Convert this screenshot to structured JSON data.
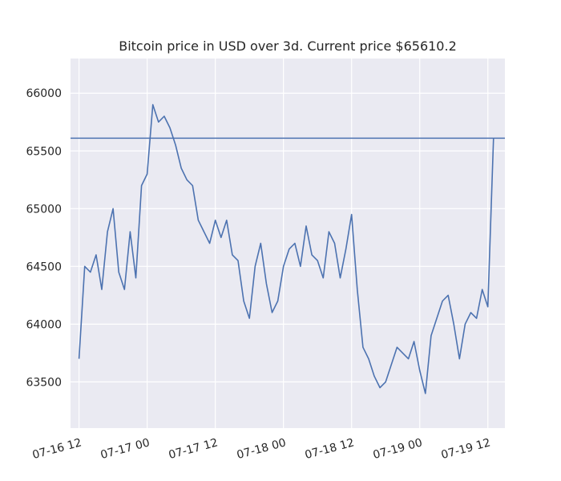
{
  "chart_data": {
    "type": "line",
    "title": "Bitcoin price in USD over 3d. Current price $65610.2",
    "xlabel": "",
    "ylabel": "",
    "x_ticks": [
      "07-16 12",
      "07-17 00",
      "07-17 12",
      "07-18 00",
      "07-18 12",
      "07-19 00",
      "07-19 12"
    ],
    "x_tick_values": [
      "2024-07-16 12:00",
      "2024-07-17 00:00",
      "2024-07-17 12:00",
      "2024-07-18 00:00",
      "2024-07-18 12:00",
      "2024-07-19 00:00",
      "2024-07-19 12:00"
    ],
    "y_ticks": [
      63500,
      64000,
      64500,
      65000,
      65500,
      66000
    ],
    "xlim": [
      "2024-07-16 10:30",
      "2024-07-19 15:00"
    ],
    "ylim": [
      63100,
      66300
    ],
    "grid": true,
    "reference_line": {
      "y": 65610.2
    },
    "colors": {
      "line": "#4c72b0",
      "background": "#eaeaf2",
      "grid": "#ffffff",
      "text": "#262626"
    },
    "series": [
      {
        "x": [
          "2024-07-16 12:00",
          "2024-07-16 13:00",
          "2024-07-16 14:00",
          "2024-07-16 15:00",
          "2024-07-16 16:00",
          "2024-07-16 17:00",
          "2024-07-16 18:00",
          "2024-07-16 19:00",
          "2024-07-16 20:00",
          "2024-07-16 21:00",
          "2024-07-16 22:00",
          "2024-07-16 23:00",
          "2024-07-17 00:00",
          "2024-07-17 01:00",
          "2024-07-17 02:00",
          "2024-07-17 03:00",
          "2024-07-17 04:00",
          "2024-07-17 05:00",
          "2024-07-17 06:00",
          "2024-07-17 07:00",
          "2024-07-17 08:00",
          "2024-07-17 09:00",
          "2024-07-17 10:00",
          "2024-07-17 11:00",
          "2024-07-17 12:00",
          "2024-07-17 13:00",
          "2024-07-17 14:00",
          "2024-07-17 15:00",
          "2024-07-17 16:00",
          "2024-07-17 17:00",
          "2024-07-17 18:00",
          "2024-07-17 19:00",
          "2024-07-17 20:00",
          "2024-07-17 21:00",
          "2024-07-17 22:00",
          "2024-07-17 23:00",
          "2024-07-18 00:00",
          "2024-07-18 01:00",
          "2024-07-18 02:00",
          "2024-07-18 03:00",
          "2024-07-18 04:00",
          "2024-07-18 05:00",
          "2024-07-18 06:00",
          "2024-07-18 07:00",
          "2024-07-18 08:00",
          "2024-07-18 09:00",
          "2024-07-18 10:00",
          "2024-07-18 11:00",
          "2024-07-18 12:00",
          "2024-07-18 13:00",
          "2024-07-18 14:00",
          "2024-07-18 15:00",
          "2024-07-18 16:00",
          "2024-07-18 17:00",
          "2024-07-18 18:00",
          "2024-07-18 19:00",
          "2024-07-18 20:00",
          "2024-07-18 21:00",
          "2024-07-18 22:00",
          "2024-07-18 23:00",
          "2024-07-19 00:00",
          "2024-07-19 01:00",
          "2024-07-19 02:00",
          "2024-07-19 03:00",
          "2024-07-19 04:00",
          "2024-07-19 05:00",
          "2024-07-19 06:00",
          "2024-07-19 07:00",
          "2024-07-19 08:00",
          "2024-07-19 09:00",
          "2024-07-19 10:00",
          "2024-07-19 11:00",
          "2024-07-19 12:00",
          "2024-07-19 13:00"
        ],
        "values": [
          63700,
          64500,
          64450,
          64600,
          64300,
          64800,
          65000,
          64450,
          64300,
          64800,
          64400,
          65200,
          65300,
          65900,
          65750,
          65800,
          65700,
          65550,
          65350,
          65250,
          65200,
          64900,
          64800,
          64700,
          64900,
          64750,
          64900,
          64600,
          64550,
          64200,
          64050,
          64500,
          64700,
          64350,
          64100,
          64200,
          64500,
          64650,
          64700,
          64500,
          64850,
          64600,
          64550,
          64400,
          64800,
          64700,
          64400,
          64650,
          64950,
          64300,
          63800,
          63700,
          63550,
          63450,
          63500,
          63650,
          63800,
          63750,
          63700,
          63850,
          63600,
          63400,
          63900,
          64050,
          64200,
          64250,
          64000,
          63700,
          64000,
          64100,
          64050,
          64300,
          64150,
          65610.2
        ]
      }
    ]
  }
}
